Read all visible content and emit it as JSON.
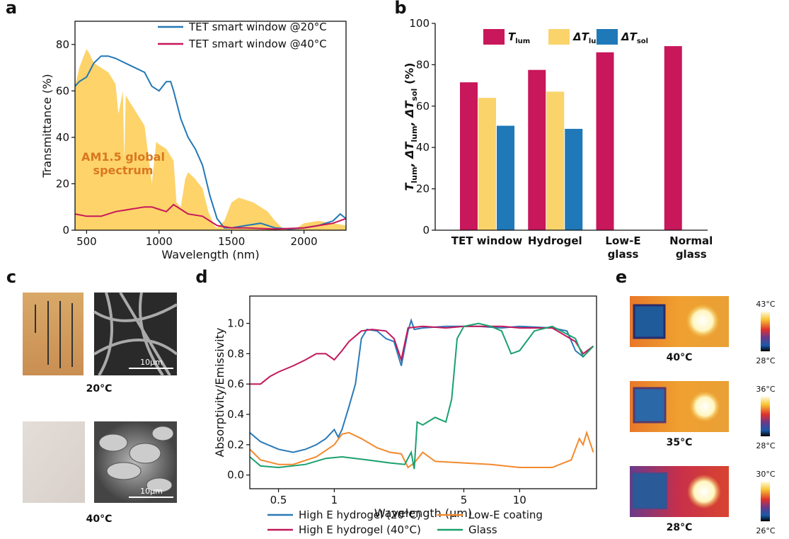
{
  "chart_data": [
    {
      "type": "line",
      "panel": "a",
      "xlabel": "Wavelength (nm)",
      "ylabel": "Transmittance (%)",
      "xlim": [
        420,
        2290
      ],
      "ylim": [
        0,
        90
      ],
      "xticks": [
        500,
        1000,
        1500,
        2000
      ],
      "yticks": [
        0,
        20,
        40,
        60,
        80
      ],
      "legend": "upper right",
      "series": [
        {
          "name": "AM1.5 global\nspectrum",
          "color": "#fdd36a",
          "label_color": "#d9781f",
          "area": true,
          "x": [
            420,
            450,
            480,
            500,
            520,
            550,
            600,
            650,
            700,
            720,
            750,
            760,
            770,
            800,
            850,
            900,
            930,
            950,
            980,
            1000,
            1050,
            1100,
            1120,
            1150,
            1180,
            1200,
            1250,
            1300,
            1340,
            1380,
            1400,
            1450,
            1500,
            1550,
            1600,
            1650,
            1700,
            1750,
            1800,
            1850,
            1950,
            2000,
            2100,
            2200,
            2290
          ],
          "values": [
            62,
            70,
            75,
            78,
            76,
            72,
            70,
            68,
            63,
            50,
            60,
            30,
            58,
            55,
            50,
            45,
            30,
            20,
            38,
            37,
            35,
            30,
            12,
            10,
            22,
            25,
            22,
            18,
            8,
            2,
            1,
            4,
            12,
            14,
            13,
            12,
            10,
            8,
            4,
            1,
            1,
            3,
            4,
            3,
            2
          ]
        },
        {
          "name": "TET smart window @20°C",
          "color": "#2378b5",
          "x": [
            420,
            450,
            500,
            550,
            600,
            650,
            700,
            800,
            900,
            950,
            1000,
            1050,
            1080,
            1100,
            1150,
            1200,
            1250,
            1300,
            1350,
            1400,
            1450,
            1500,
            1600,
            1700,
            1800,
            1900,
            2000,
            2100,
            2200,
            2250,
            2290
          ],
          "values": [
            62,
            64,
            66,
            72,
            75,
            75,
            74,
            71,
            68,
            62,
            60,
            64,
            64,
            60,
            48,
            40,
            35,
            28,
            15,
            5,
            1,
            1,
            2,
            3,
            1,
            0.5,
            1,
            2,
            4,
            7,
            5
          ]
        },
        {
          "name": "TET smart window @40°C",
          "color": "#c8175a",
          "x": [
            420,
            500,
            600,
            700,
            800,
            900,
            950,
            1000,
            1050,
            1100,
            1150,
            1200,
            1300,
            1400,
            1500,
            1600,
            1800,
            2000,
            2200,
            2290
          ],
          "values": [
            7,
            6,
            6,
            8,
            9,
            10,
            10,
            9,
            8,
            11,
            9,
            7,
            6,
            2,
            1,
            1,
            0.5,
            1,
            3,
            5
          ]
        }
      ]
    },
    {
      "type": "bar",
      "panel": "b",
      "ylabel": [
        "T",
        "lum",
        ", ΔT",
        "lum",
        ", ΔT",
        "sol",
        " (%)"
      ],
      "categories": [
        "TET window",
        "Hydrogel",
        "Low-E\nglass",
        "Normal\nglass"
      ],
      "ylim": [
        0,
        100
      ],
      "yticks": [
        0,
        20,
        40,
        60,
        80,
        100
      ],
      "legend": "top",
      "series": [
        {
          "name": "T",
          "subscript": "lum",
          "color": "#c8175a",
          "values": [
            71.5,
            77.5,
            86,
            89
          ]
        },
        {
          "name": "ΔT",
          "subscript": "lum",
          "color": "#fad46b",
          "values": [
            64,
            67,
            null,
            null
          ]
        },
        {
          "name": "ΔT",
          "subscript": "sol",
          "color": "#1f78b8",
          "values": [
            50.5,
            49,
            null,
            null
          ]
        }
      ]
    },
    {
      "type": "line",
      "panel": "d",
      "xlabel": "Wavelength (μm)",
      "ylabel": "Absorptivity/Emissivity",
      "xscale": "log",
      "xlim": [
        0.35,
        26
      ],
      "ylim": [
        -0.09,
        1.18
      ],
      "xticks": [
        0.5,
        1,
        5,
        10
      ],
      "yticks": [
        {
          "value": 0,
          "label": "0.0"
        },
        0.2,
        0.4,
        0.6,
        0.8,
        {
          "value": 1,
          "label": "1.0"
        }
      ],
      "legend": "below",
      "series": [
        {
          "name": "High E hydrogel (20°C)",
          "color": "#2a7ab8",
          "x": [
            0.35,
            0.4,
            0.5,
            0.6,
            0.7,
            0.8,
            0.9,
            1.0,
            1.05,
            1.1,
            1.2,
            1.3,
            1.4,
            1.5,
            1.7,
            1.9,
            2.1,
            2.3,
            2.5,
            2.6,
            2.7,
            3,
            4,
            5,
            6,
            8,
            10,
            15,
            18,
            20,
            22,
            25
          ],
          "values": [
            0.28,
            0.22,
            0.17,
            0.15,
            0.17,
            0.2,
            0.24,
            0.3,
            0.25,
            0.3,
            0.45,
            0.6,
            0.9,
            0.96,
            0.95,
            0.9,
            0.88,
            0.72,
            0.95,
            1.02,
            0.96,
            0.97,
            0.98,
            0.98,
            0.98,
            0.97,
            0.98,
            0.97,
            0.95,
            0.82,
            0.78,
            0.85
          ]
        },
        {
          "name": "High E hydrogel (40°C)",
          "color": "#c2185b",
          "x": [
            0.35,
            0.4,
            0.45,
            0.5,
            0.6,
            0.7,
            0.8,
            0.9,
            1.0,
            1.1,
            1.2,
            1.4,
            1.6,
            1.9,
            2.1,
            2.3,
            2.5,
            3,
            4,
            5,
            8,
            10,
            15,
            20,
            22,
            25
          ],
          "values": [
            0.6,
            0.6,
            0.65,
            0.68,
            0.72,
            0.76,
            0.8,
            0.8,
            0.76,
            0.82,
            0.88,
            0.95,
            0.96,
            0.95,
            0.9,
            0.76,
            0.97,
            0.98,
            0.97,
            0.98,
            0.98,
            0.97,
            0.97,
            0.88,
            0.8,
            0.85
          ]
        },
        {
          "name": "Low-E coating",
          "color": "#f28a2e",
          "x": [
            0.35,
            0.4,
            0.5,
            0.6,
            0.8,
            1.0,
            1.1,
            1.2,
            1.4,
            1.7,
            2,
            2.3,
            2.5,
            2.7,
            3,
            3.5,
            5,
            7,
            10,
            15,
            19,
            21,
            22,
            23,
            25
          ],
          "values": [
            0.17,
            0.1,
            0.07,
            0.07,
            0.12,
            0.2,
            0.27,
            0.28,
            0.24,
            0.18,
            0.15,
            0.14,
            0.05,
            0.08,
            0.15,
            0.09,
            0.08,
            0.07,
            0.05,
            0.05,
            0.1,
            0.24,
            0.2,
            0.28,
            0.15
          ]
        },
        {
          "name": "Glass",
          "color": "#1aa06e",
          "x": [
            0.35,
            0.4,
            0.5,
            0.7,
            0.9,
            1.1,
            1.5,
            2,
            2.4,
            2.6,
            2.7,
            2.8,
            3,
            3.5,
            4,
            4.3,
            4.6,
            5,
            6,
            7,
            8,
            9,
            10,
            12,
            15,
            20,
            22,
            25
          ],
          "values": [
            0.12,
            0.06,
            0.05,
            0.07,
            0.11,
            0.12,
            0.1,
            0.08,
            0.07,
            0.15,
            0.04,
            0.35,
            0.33,
            0.38,
            0.35,
            0.5,
            0.9,
            0.98,
            1.0,
            0.98,
            0.95,
            0.8,
            0.82,
            0.95,
            0.98,
            0.9,
            0.78,
            0.85
          ]
        }
      ]
    }
  ],
  "panel_c": {
    "label": "c",
    "captions": [
      "20°C",
      "40°C"
    ],
    "scale_bars": [
      "10μm",
      "10μm"
    ]
  },
  "panel_e": {
    "label": "e",
    "images": [
      {
        "caption": "40°C",
        "max": "43°C",
        "min": "28°C"
      },
      {
        "caption": "35°C",
        "max": "36°C",
        "min": "28°C"
      },
      {
        "caption": "28°C",
        "max": "30°C",
        "min": "26°C"
      }
    ]
  }
}
